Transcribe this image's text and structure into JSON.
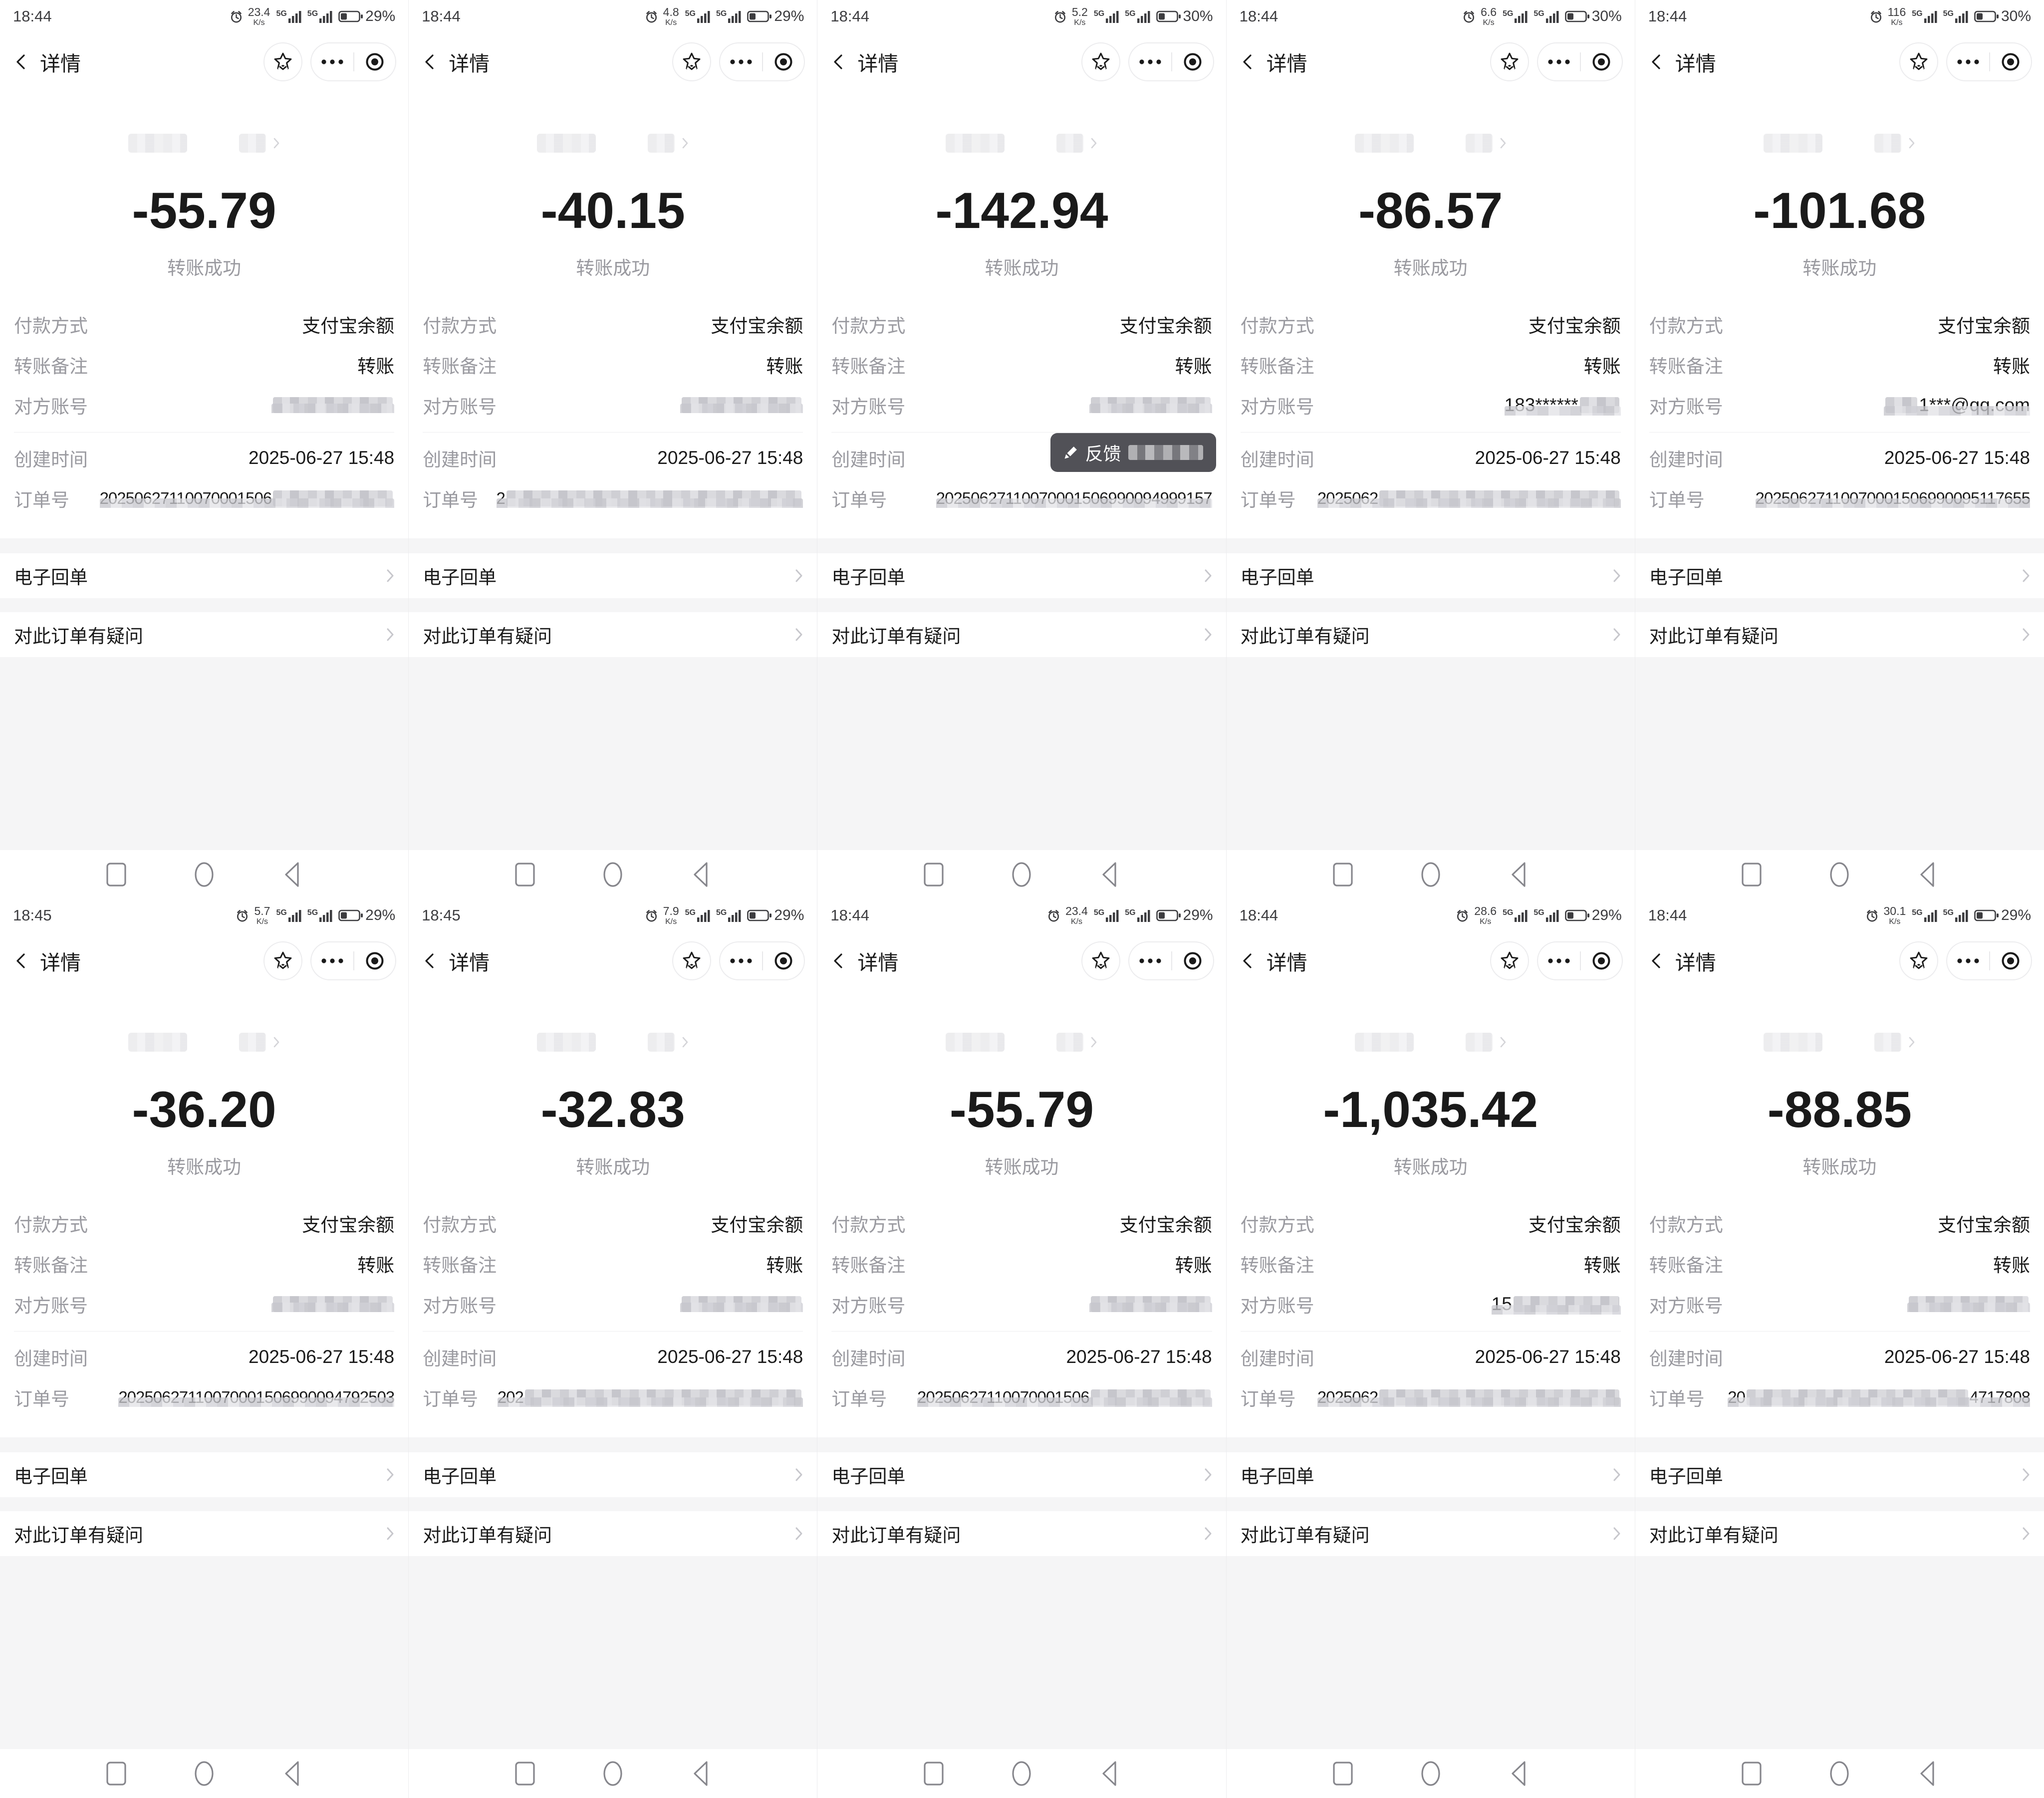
{
  "screen": {
    "title": "详情",
    "network": "5G",
    "speed_unit": "K/s",
    "amount_status": "转账成功",
    "fields": {
      "payment_label": "付款方式",
      "payment_value": "支付宝余额",
      "note_label": "转账备注",
      "note_value": "转账",
      "account_label": "对方账号",
      "created_label": "创建时间",
      "created_value": "2025-06-27 15:48",
      "order_label": "订单号"
    },
    "links": {
      "receipt": "电子回单",
      "question": "对此订单有疑问"
    },
    "feedback": {
      "label": "反馈"
    }
  },
  "colors": {
    "text_primary": "#1a1a1a",
    "text_secondary": "#9a9aa0",
    "page_bg": "#f5f5f6",
    "bubble_bg": "#515157",
    "chevron_gray": "#c7c7cc"
  },
  "panels": [
    {
      "time": "18:44",
      "speed": "23.4",
      "battery": "29%",
      "amount": "-55.79",
      "account": {
        "prefix": "",
        "suffix": "",
        "masked": true
      },
      "order": {
        "prefix": "20250627110070001506",
        "suffix": "",
        "masked": true
      },
      "avatar": [
        "#3a3f4a",
        "#c0392b",
        "#b59a6a"
      ],
      "feedback": false
    },
    {
      "time": "18:44",
      "speed": "4.8",
      "battery": "29%",
      "amount": "-40.15",
      "account": {
        "prefix": "",
        "suffix": "",
        "masked": true
      },
      "order": {
        "prefix": "2",
        "suffix": "",
        "masked": true
      },
      "avatar": [
        "#8a4a3a",
        "#6b4a42",
        "#a8897b"
      ],
      "feedback": false
    },
    {
      "time": "18:44",
      "speed": "5.2",
      "battery": "30%",
      "amount": "-142.94",
      "account": {
        "prefix": "",
        "suffix": "",
        "masked": true
      },
      "order": {
        "prefix": "20250627110070001506990094999157",
        "suffix": "",
        "masked": false
      },
      "avatar": [
        "#caa27e",
        "#8a6a4f",
        "#3f3a35"
      ],
      "feedback": true
    },
    {
      "time": "18:44",
      "speed": "6.6",
      "battery": "30%",
      "amount": "-86.57",
      "account": {
        "prefix": "183******",
        "suffix": "",
        "masked": true
      },
      "order": {
        "prefix": "2025062",
        "suffix": "",
        "masked": true
      },
      "avatar": [
        "#4a4a52",
        "#6e6e76",
        "#2e2e34"
      ],
      "feedback": false
    },
    {
      "time": "18:44",
      "speed": "116",
      "battery": "30%",
      "amount": "-101.68",
      "account": {
        "prefix": "",
        "suffix": "1***@qq.com",
        "masked": true
      },
      "order": {
        "prefix": "20250627110070001506990095117655",
        "suffix": "",
        "masked": false
      },
      "avatar": [
        "#2b5fb8",
        "#dfe8f5",
        "#1e4a9a"
      ],
      "feedback": false
    },
    {
      "time": "18:45",
      "speed": "5.7",
      "battery": "29%",
      "amount": "-36.20",
      "account": {
        "prefix": "",
        "suffix": "",
        "masked": true
      },
      "order": {
        "prefix": "20250627110070001506990094792503",
        "suffix": "",
        "masked": false
      },
      "avatar": [
        "#2f4a2f",
        "#57704a",
        "#1f2f1f"
      ],
      "feedback": false
    },
    {
      "time": "18:45",
      "speed": "7.9",
      "battery": "29%",
      "amount": "-32.83",
      "account": {
        "prefix": "",
        "suffix": "",
        "masked": true
      },
      "order": {
        "prefix": "202",
        "suffix": "",
        "masked": true
      },
      "avatar": [
        "#bcbcbc",
        "#d9d9d9",
        "#9a9a9a"
      ],
      "feedback": false
    },
    {
      "time": "18:44",
      "speed": "23.4",
      "battery": "29%",
      "amount": "-55.79",
      "account": {
        "prefix": "",
        "suffix": "",
        "masked": true
      },
      "order": {
        "prefix": "20250627110070001506",
        "suffix": "",
        "masked": true
      },
      "avatar": [
        "#7a3a32",
        "#4a2e2a",
        "#caa08a"
      ],
      "feedback": false
    },
    {
      "time": "18:44",
      "speed": "28.6",
      "battery": "29%",
      "amount": "-1,035.42",
      "account": {
        "prefix": "15",
        "suffix": "",
        "masked": true
      },
      "order": {
        "prefix": "2025062",
        "suffix": "",
        "masked": true
      },
      "avatar": [
        "#3a3a40",
        "#5a5a62",
        "#26262c"
      ],
      "feedback": false
    },
    {
      "time": "18:44",
      "speed": "30.1",
      "battery": "29%",
      "amount": "-88.85",
      "account": {
        "prefix": "",
        "suffix": "",
        "masked": true
      },
      "order": {
        "prefix": "20",
        "suffix": "4717808",
        "masked": true
      },
      "avatar": [
        "#e0a23a",
        "#caa04a",
        "#8a5f2a"
      ],
      "feedback": false
    }
  ]
}
